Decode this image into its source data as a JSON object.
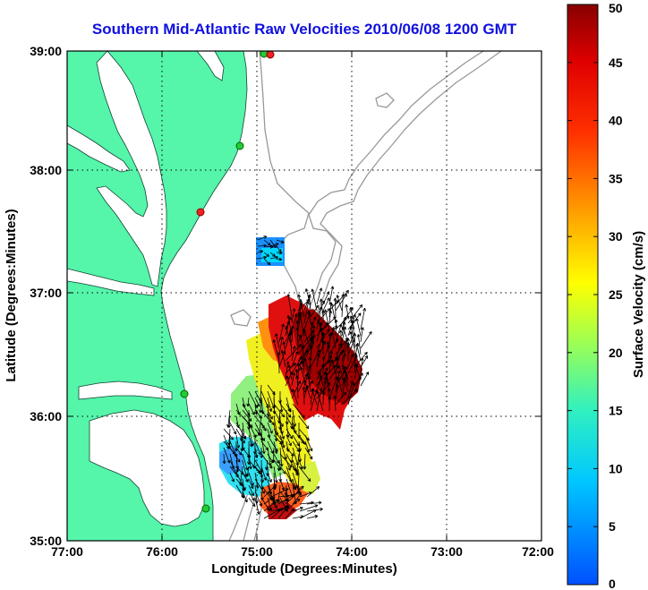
{
  "chart_data": {
    "type": "heatmap",
    "title": "Southern Mid-Atlantic Raw Velocities 2010/06/08 1200 GMT",
    "xlabel": "Longitude (Degrees:Minutes)",
    "ylabel": "Latitude (Degrees:Minutes)",
    "x_ticks": [
      "77:00",
      "76:00",
      "75:00",
      "74:00",
      "73:00",
      "72:00"
    ],
    "y_ticks": [
      "39:00",
      "38:00",
      "37:00",
      "36:00",
      "35:00"
    ],
    "xlim": [
      -77,
      -72
    ],
    "ylim": [
      35,
      39
    ],
    "grid": true,
    "colorbar": {
      "label": "Surface Velocity (cm/s)",
      "range": [
        0,
        50
      ],
      "ticks": [
        "0",
        "5",
        "10",
        "15",
        "20",
        "25",
        "30",
        "35",
        "40",
        "45",
        "50"
      ],
      "colors": [
        "#0050ff",
        "#00c8ff",
        "#30f0c0",
        "#a0ff50",
        "#ffff00",
        "#ffa000",
        "#ff3000",
        "#e00000",
        "#880000"
      ]
    },
    "regions": [
      {
        "lon": [
          -75.0,
          -74.72
        ],
        "lat": [
          37.22,
          37.42
        ],
        "speed": 8
      },
      {
        "lon": [
          -75.1,
          -74.9
        ],
        "lat": [
          35.9,
          36.2
        ],
        "speed": 25
      },
      {
        "lon": [
          -75.3,
          -74.6
        ],
        "lat": [
          35.0,
          35.9
        ],
        "speed": 16
      },
      {
        "lon": [
          -75.0,
          -74.6
        ],
        "lat": [
          36.0,
          36.6
        ],
        "speed": 33
      },
      {
        "lon": [
          -74.8,
          -74.2
        ],
        "lat": [
          35.9,
          36.6
        ],
        "speed": 47
      },
      {
        "lon": [
          -74.9,
          -74.6
        ],
        "lat": [
          35.2,
          35.4
        ],
        "speed": 42
      }
    ],
    "stations_color": {
      "green": "#22cc33",
      "red": "#ee2222"
    },
    "land_color": "#55f5aa",
    "bathymetry_color": "#999999"
  }
}
